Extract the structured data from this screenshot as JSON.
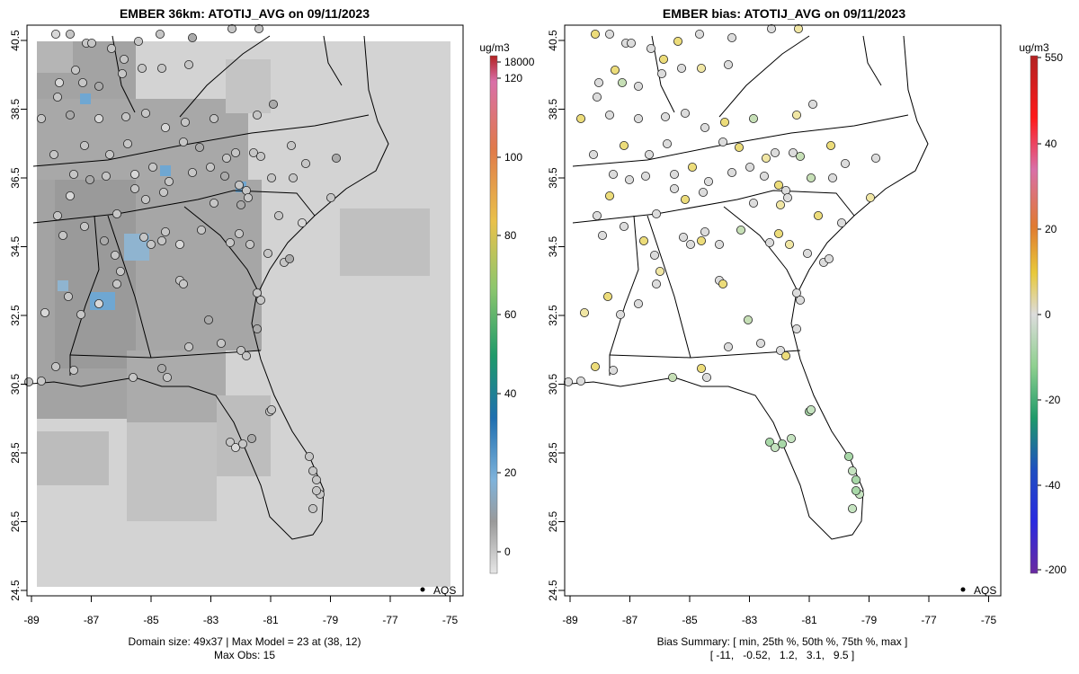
{
  "left_panel": {
    "title": "EMBER 36km: ATOTIJ_AVG on 09/11/2023",
    "legend_label": "AQS",
    "footer_line1": "Domain size: 49x37 | Max Model = 23 at (38, 12)",
    "footer_line2": "Max Obs: 15",
    "colorbar": {
      "unit": "ug/m3",
      "ticks": [
        "18000",
        "120",
        "100",
        "80",
        "60",
        "40",
        "20",
        "0"
      ]
    }
  },
  "right_panel": {
    "title": "EMBER bias: ATOTIJ_AVG on 09/11/2023",
    "legend_label": "AQS",
    "footer_line1": "Bias Summary: [ min, 25th %, 50th %, 75th %, max ]",
    "footer_line2": "[ -11,   -0.52,   1.2,   3.1,   9.5 ]",
    "colorbar": {
      "unit": "ug/m3",
      "ticks": [
        "550",
        "40",
        "20",
        "0",
        "-20",
        "-40",
        "-200"
      ]
    }
  },
  "axes": {
    "x_ticks": [
      "-89",
      "-87",
      "-85",
      "-83",
      "-81",
      "-79",
      "-77",
      "-75"
    ],
    "y_ticks": [
      "40.5",
      "38.5",
      "36.5",
      "34.5",
      "32.5",
      "30.5",
      "28.5",
      "26.5",
      "24.5"
    ]
  },
  "colors": {
    "grid_light": "#d3d3d3",
    "grid_mid": "#b5b5b5",
    "grid_dark": "#9a9a9a",
    "grid_blue": "#6fa7d2",
    "bias_pos": "#ecdc7a",
    "bias_neg": "#a8d8a8",
    "bias_zero": "#dcdcdc"
  }
}
